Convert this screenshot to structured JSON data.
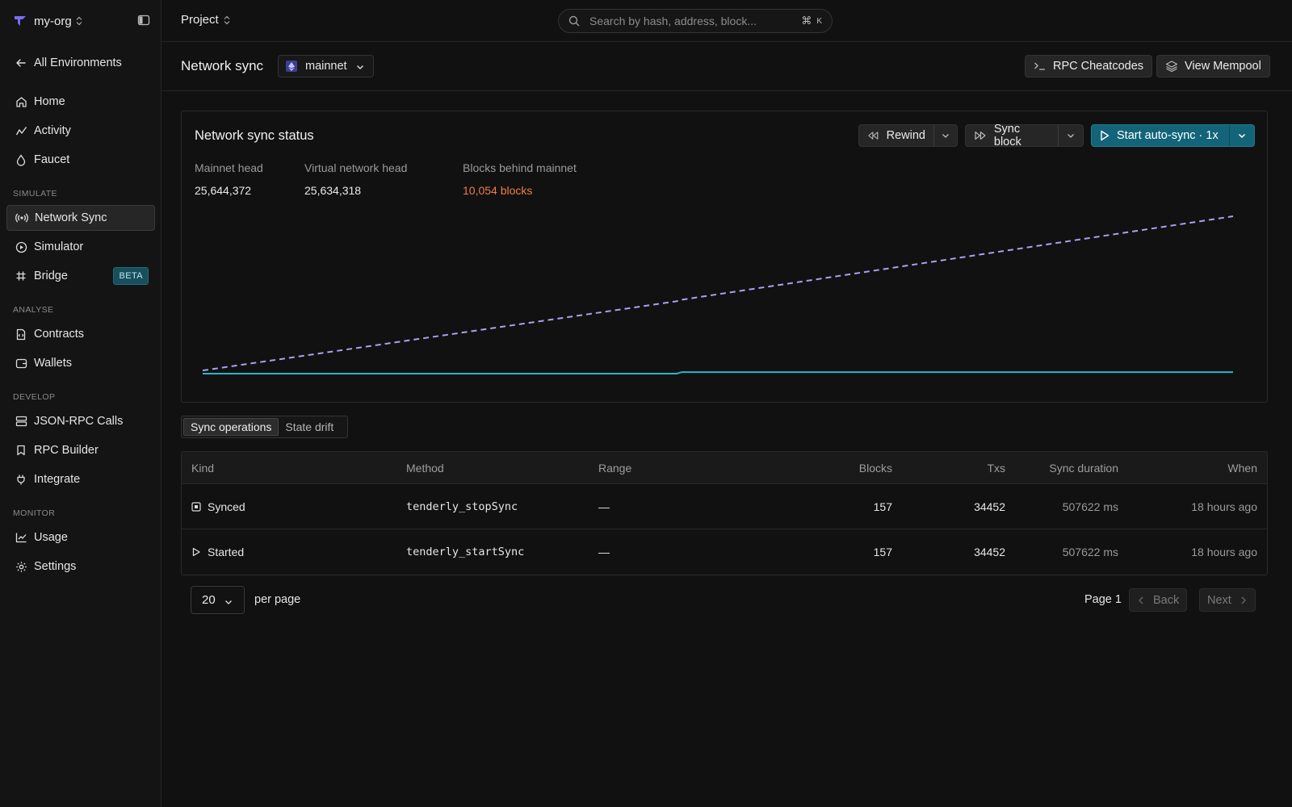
{
  "sidebar": {
    "org_name": "my-org",
    "back_link": "All Environments",
    "items": {
      "home": "Home",
      "activity": "Activity",
      "faucet": "Faucet",
      "network_sync": "Network Sync",
      "simulator": "Simulator",
      "bridge": "Bridge",
      "contracts": "Contracts",
      "wallets": "Wallets",
      "json_rpc_calls": "JSON-RPC Calls",
      "rpc_builder": "RPC Builder",
      "integrate": "Integrate",
      "usage": "Usage",
      "settings": "Settings"
    },
    "sections": {
      "simulate": "SIMULATE",
      "analyse": "ANALYSE",
      "develop": "DEVELOP",
      "monitor": "MONITOR"
    },
    "bridge_badge": "BETA",
    "active_item": "Network Sync"
  },
  "topbar": {
    "project_label": "Project",
    "search_placeholder": "Search by hash, address, block...",
    "search_shortcut_symbol": "⌘",
    "search_shortcut_key": "K"
  },
  "header": {
    "title": "Network sync",
    "network": "mainnet",
    "rpc_cheatcodes": "RPC Cheatcodes",
    "view_mempool": "View Mempool"
  },
  "status_card": {
    "title": "Network sync status",
    "rewind": "Rewind",
    "sync_block": "Sync block",
    "start_auto_sync": "Start auto-sync · 1x",
    "metrics": {
      "mainnet_head_label": "Mainnet head",
      "mainnet_head_value": "25,644,372",
      "virtual_head_label": "Virtual network head",
      "virtual_head_value": "25,634,318",
      "behind_label": "Blocks behind mainnet",
      "behind_value": "10,054 blocks"
    }
  },
  "chart_data": {
    "type": "line",
    "title": "",
    "xlabel": "",
    "ylabel": "",
    "grid": false,
    "legend": "none",
    "x": [
      0,
      0.46,
      0.465,
      1
    ],
    "series": [
      {
        "style": "dashed",
        "color": "#a9a2ee",
        "values": [
          0.02,
          0.46,
          0.47,
          1.0
        ]
      },
      {
        "style": "solid",
        "color": "#2bb4cc",
        "values": [
          0.0,
          0.0,
          0.01,
          0.01
        ]
      }
    ],
    "ylim": [
      0,
      1
    ]
  },
  "tabs": {
    "sync_operations": "Sync operations",
    "state_drift": "State drift"
  },
  "table": {
    "headers": {
      "kind": "Kind",
      "method": "Method",
      "range": "Range",
      "blocks": "Blocks",
      "txs": "Txs",
      "sync_duration": "Sync duration",
      "when": "When"
    },
    "rows": [
      {
        "kind": "Synced",
        "icon": "stop-square-icon",
        "method": "tenderly_stopSync",
        "range": "—",
        "blocks": "157",
        "txs": "34452",
        "duration": "507622 ms",
        "when": "18 hours ago"
      },
      {
        "kind": "Started",
        "icon": "play-icon",
        "method": "tenderly_startSync",
        "range": "—",
        "blocks": "157",
        "txs": "34452",
        "duration": "507622 ms",
        "when": "18 hours ago"
      }
    ]
  },
  "pagination": {
    "per_page_value": "20",
    "per_page_label": "per page",
    "page_label": "Page 1",
    "back": "Back",
    "next": "Next"
  },
  "colors": {
    "accent": "#136479",
    "warning": "#f07d46",
    "line_mainnet": "#a9a2ee",
    "line_virtual": "#2bb4cc"
  }
}
